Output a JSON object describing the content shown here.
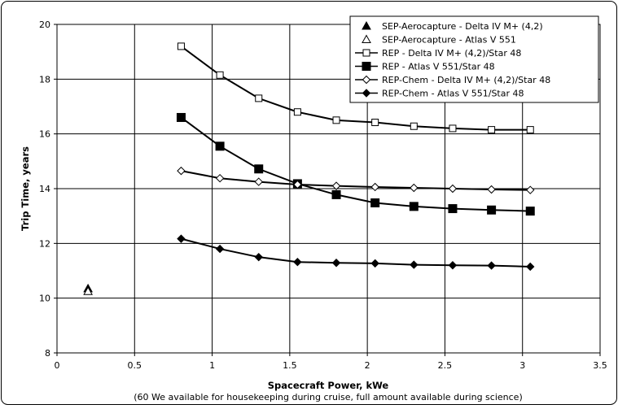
{
  "chart_data": {
    "type": "line",
    "xlabel": "Spacecraft Power, kWe",
    "xlabel_note": "(60 We available for housekeeping during cruise, full amount available during science)",
    "ylabel": "Trip Time, years",
    "xlim": [
      0,
      3.5
    ],
    "ylim": [
      8,
      20
    ],
    "x_ticks": [
      "0",
      "0.5",
      "1",
      "1.5",
      "2",
      "2.5",
      "3",
      "3.5"
    ],
    "y_ticks": [
      "8",
      "10",
      "12",
      "14",
      "16",
      "18",
      "20"
    ],
    "grid": true,
    "legend_position": "top-right",
    "series": [
      {
        "name": "SEP-Aerocapture - Delta IV M+ (4,2)",
        "marker": "triangle-filled",
        "line": false,
        "x": [
          0.2
        ],
        "y": [
          10.35
        ]
      },
      {
        "name": "SEP-Aerocapture - Atlas V 551",
        "marker": "triangle-open",
        "line": false,
        "x": [
          0.2
        ],
        "y": [
          10.25
        ]
      },
      {
        "name": "REP - Delta IV M+ (4,2)/Star 48",
        "marker": "square-open",
        "line": true,
        "x": [
          0.8,
          1.05,
          1.3,
          1.55,
          1.8,
          2.05,
          2.3,
          2.55,
          2.8,
          3.05
        ],
        "y": [
          19.2,
          18.15,
          17.3,
          16.8,
          16.5,
          16.42,
          16.28,
          16.2,
          16.15,
          16.15
        ]
      },
      {
        "name": "REP - Atlas V 551/Star 48",
        "marker": "square-filled",
        "line": true,
        "x": [
          0.8,
          1.05,
          1.3,
          1.55,
          1.8,
          2.05,
          2.3,
          2.55,
          2.8,
          3.05
        ],
        "y": [
          16.6,
          15.55,
          14.72,
          14.18,
          13.78,
          13.48,
          13.35,
          13.27,
          13.22,
          13.18
        ]
      },
      {
        "name": "REP-Chem - Delta IV M+ (4,2)/Star 48",
        "marker": "diamond-open",
        "line": true,
        "x": [
          0.8,
          1.05,
          1.3,
          1.55,
          1.8,
          2.05,
          2.3,
          2.55,
          2.8,
          3.05
        ],
        "y": [
          14.65,
          14.38,
          14.25,
          14.15,
          14.1,
          14.06,
          14.03,
          14.0,
          13.97,
          13.95
        ]
      },
      {
        "name": "REP-Chem - Atlas V 551/Star 48",
        "marker": "diamond-filled",
        "line": true,
        "x": [
          0.8,
          1.05,
          1.3,
          1.55,
          1.8,
          2.05,
          2.3,
          2.55,
          2.8,
          3.05
        ],
        "y": [
          12.17,
          11.8,
          11.5,
          11.32,
          11.29,
          11.27,
          11.22,
          11.2,
          11.19,
          11.15
        ]
      }
    ]
  }
}
